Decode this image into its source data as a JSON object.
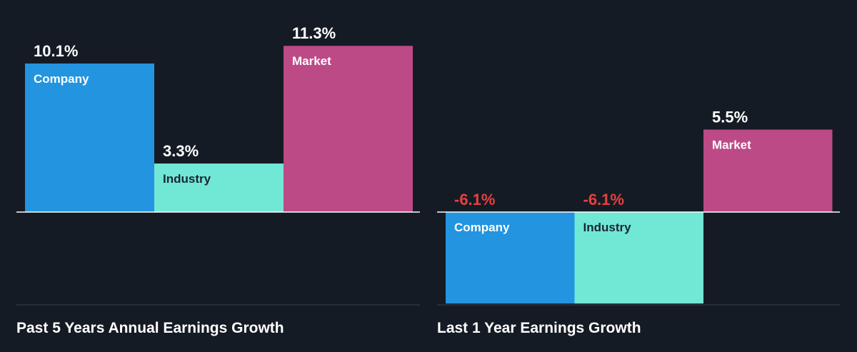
{
  "chart_data": [
    {
      "type": "bar",
      "title": "Past 5 Years Annual Earnings Growth",
      "categories": [
        "Company",
        "Industry",
        "Market"
      ],
      "values": [
        10.1,
        3.3,
        11.3
      ],
      "value_labels": [
        "10.1%",
        "3.3%",
        "11.3%"
      ],
      "colors": [
        "#2394df",
        "#71e7d6",
        "#bc4a87"
      ],
      "unit": "%"
    },
    {
      "type": "bar",
      "title": "Last 1 Year Earnings Growth",
      "categories": [
        "Company",
        "Industry",
        "Market"
      ],
      "values": [
        -6.1,
        -6.1,
        5.5
      ],
      "value_labels": [
        "-6.1%",
        "-6.1%",
        "5.5%"
      ],
      "colors": [
        "#2394df",
        "#71e7d6",
        "#bc4a87"
      ],
      "unit": "%"
    }
  ],
  "style": {
    "background": "#151b24",
    "positive_label_color": "#ffffff",
    "negative_label_color": "#e64141",
    "category_label_on_dark": "#ffffff",
    "category_label_on_light": "#1b2533",
    "axis_color": "#ffffff",
    "footer_line_color": "#3a414c"
  }
}
